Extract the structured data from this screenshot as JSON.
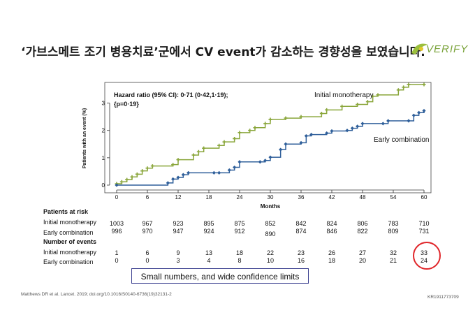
{
  "slide": {
    "title": "‘가브스메트 조기 병용치료’군에서 CV event가 감소하는 경향성을 보였습니다.",
    "logo_text": "VERIFY",
    "hazard_line1": "Hazard ratio (95% CI): 0·71 (0·42,1·19);",
    "hazard_line2": "{p=0·19}",
    "callout": "Small numbers, and wide confidence limits",
    "citation": "Matthews DR et al. Lancet. 2019; doi.org/10.1016/S0140-6736(19)32131-2",
    "code": "KR1911773709"
  },
  "colors": {
    "monotherapy": "#8aa63b",
    "combination": "#2f5f9a",
    "highlight": "#e0262a",
    "callout_border": "#3a3f8f"
  },
  "chart_data": {
    "type": "line",
    "xlabel": "Months",
    "ylabel": "Patients with an event (%)",
    "xlim": [
      0,
      60
    ],
    "ylim": [
      0,
      3.5
    ],
    "xticks": [
      0,
      6,
      12,
      18,
      24,
      30,
      36,
      42,
      48,
      54,
      60
    ],
    "yticks": [
      0,
      1,
      2,
      3
    ],
    "series": [
      {
        "name": "Initial monotherapy",
        "step_x": [
          0,
          1,
          2,
          3,
          4,
          5,
          6,
          7,
          11,
          12,
          15,
          16,
          17,
          20,
          21,
          23,
          24,
          26,
          27,
          29,
          30,
          33,
          36,
          40,
          41,
          44,
          47,
          49,
          50,
          51,
          55,
          56,
          57,
          60
        ],
        "step_y": [
          0.05,
          0.12,
          0.2,
          0.3,
          0.4,
          0.52,
          0.62,
          0.7,
          0.75,
          0.93,
          1.1,
          1.22,
          1.35,
          1.45,
          1.58,
          1.7,
          1.92,
          2.0,
          2.1,
          2.25,
          2.4,
          2.45,
          2.5,
          2.62,
          2.75,
          2.88,
          2.95,
          3.05,
          3.25,
          3.3,
          3.48,
          3.58,
          3.68,
          3.68
        ]
      },
      {
        "name": "Early combination",
        "step_x": [
          0,
          10,
          11,
          12,
          13,
          14,
          19,
          20,
          22,
          23,
          24,
          28,
          29,
          30,
          32,
          33,
          36,
          37,
          38,
          41,
          42,
          45,
          46,
          47,
          48,
          52,
          53,
          57,
          58,
          59,
          60
        ],
        "step_y": [
          0.0,
          0.08,
          0.22,
          0.28,
          0.38,
          0.45,
          0.45,
          0.45,
          0.55,
          0.65,
          0.85,
          0.85,
          0.9,
          1.02,
          1.3,
          1.5,
          1.55,
          1.8,
          1.85,
          1.9,
          1.98,
          2.0,
          2.08,
          2.15,
          2.25,
          2.25,
          2.35,
          2.35,
          2.55,
          2.65,
          2.72
        ]
      }
    ]
  },
  "tables": {
    "risk_title": "Patients at risk",
    "events_title": "Number of events",
    "rows": [
      {
        "label": "Initial monotherapy",
        "values": [
          "1003",
          "967",
          "923",
          "895",
          "875",
          "852",
          "842",
          "824",
          "806",
          "783",
          "710"
        ]
      },
      {
        "label": "Early combination",
        "values": [
          "996",
          "970",
          "947",
          "924",
          "912",
          "890",
          "874",
          "846",
          "822",
          "809",
          "731"
        ]
      }
    ],
    "events": [
      {
        "label": "Initial monotherapy",
        "values": [
          "1",
          "6",
          "9",
          "13",
          "18",
          "22",
          "23",
          "26",
          "27",
          "32",
          "33"
        ]
      },
      {
        "label": "Early combination",
        "values": [
          "0",
          "0",
          "3",
          "4",
          "8",
          "10",
          "16",
          "18",
          "20",
          "21",
          "24"
        ]
      }
    ]
  }
}
